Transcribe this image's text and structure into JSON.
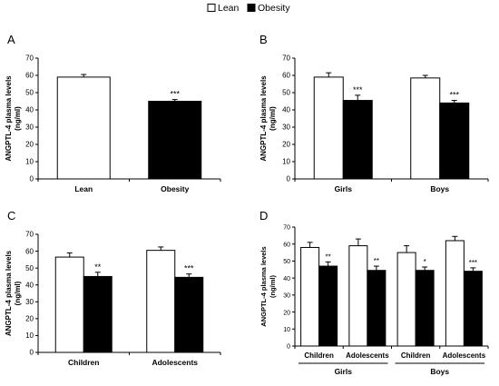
{
  "legend": {
    "items": [
      {
        "label": "Lean",
        "color": "#ffffff"
      },
      {
        "label": "Obesity",
        "color": "#000000"
      }
    ]
  },
  "chart_data": [
    {
      "panel": "A",
      "type": "bar",
      "ylabel": "ANGPTL-4 plasma levels",
      "yunit": "(ng/ml)",
      "ylim": [
        0,
        70
      ],
      "yticks": [
        0,
        10,
        20,
        30,
        40,
        50,
        60,
        70
      ],
      "groups": [
        {
          "bars": [
            {
              "label": "Lean",
              "series": "Lean",
              "value": 59,
              "error": 1.5,
              "sig": ""
            },
            {
              "label": "Obesity",
              "series": "Obesity",
              "value": 45,
              "error": 1,
              "sig": "***"
            }
          ]
        }
      ]
    },
    {
      "panel": "B",
      "type": "bar",
      "ylabel": "ANGPTL-4 plasma levels",
      "yunit": "(ng/ml)",
      "ylim": [
        0,
        70
      ],
      "yticks": [
        0,
        10,
        20,
        30,
        40,
        50,
        60,
        70
      ],
      "groups": [
        {
          "label": "Girls",
          "bars": [
            {
              "series": "Lean",
              "value": 59,
              "error": 2.5,
              "sig": ""
            },
            {
              "series": "Obesity",
              "value": 45.5,
              "error": 3,
              "sig": "***"
            }
          ]
        },
        {
          "label": "Boys",
          "bars": [
            {
              "series": "Lean",
              "value": 58.5,
              "error": 1.5,
              "sig": ""
            },
            {
              "series": "Obesity",
              "value": 44,
              "error": 1.5,
              "sig": "***"
            }
          ]
        }
      ]
    },
    {
      "panel": "C",
      "type": "bar",
      "ylabel": "ANGPTL-4 plasma levels",
      "yunit": "(ng/ml)",
      "ylim": [
        0,
        70
      ],
      "yticks": [
        0,
        10,
        20,
        30,
        40,
        50,
        60,
        70
      ],
      "groups": [
        {
          "label": "Children",
          "bars": [
            {
              "series": "Lean",
              "value": 56.5,
              "error": 2.5,
              "sig": ""
            },
            {
              "series": "Obesity",
              "value": 45,
              "error": 2.5,
              "sig": "**"
            }
          ]
        },
        {
          "label": "Adolescents",
          "bars": [
            {
              "series": "Lean",
              "value": 60.5,
              "error": 2,
              "sig": ""
            },
            {
              "series": "Obesity",
              "value": 44.5,
              "error": 2,
              "sig": "***"
            }
          ]
        }
      ]
    },
    {
      "panel": "D",
      "type": "bar",
      "ylabel": "ANGPTL-4 plasma levels",
      "yunit": "(ng/ml)",
      "ylim": [
        0,
        70
      ],
      "yticks": [
        0,
        10,
        20,
        30,
        40,
        50,
        60,
        70
      ],
      "groups": [
        {
          "label": "Children",
          "bars": [
            {
              "series": "Lean",
              "value": 58,
              "error": 3,
              "sig": ""
            },
            {
              "series": "Obesity",
              "value": 47,
              "error": 2.5,
              "sig": "**"
            }
          ]
        },
        {
          "label": "Adolescents",
          "bars": [
            {
              "series": "Lean",
              "value": 59,
              "error": 4,
              "sig": ""
            },
            {
              "series": "Obesity",
              "value": 44.5,
              "error": 2.5,
              "sig": "**"
            }
          ]
        },
        {
          "label": "Children",
          "bars": [
            {
              "series": "Lean",
              "value": 55,
              "error": 4,
              "sig": ""
            },
            {
              "series": "Obesity",
              "value": 44.5,
              "error": 2,
              "sig": "*"
            }
          ]
        },
        {
          "label": "Adolescents",
          "bars": [
            {
              "series": "Lean",
              "value": 62,
              "error": 2.5,
              "sig": ""
            },
            {
              "series": "Obesity",
              "value": 44,
              "error": 2,
              "sig": "***"
            }
          ]
        }
      ],
      "supergroups": [
        {
          "label": "Girls",
          "groups": [
            0,
            1
          ]
        },
        {
          "label": "Boys",
          "groups": [
            2,
            3
          ]
        }
      ]
    }
  ]
}
